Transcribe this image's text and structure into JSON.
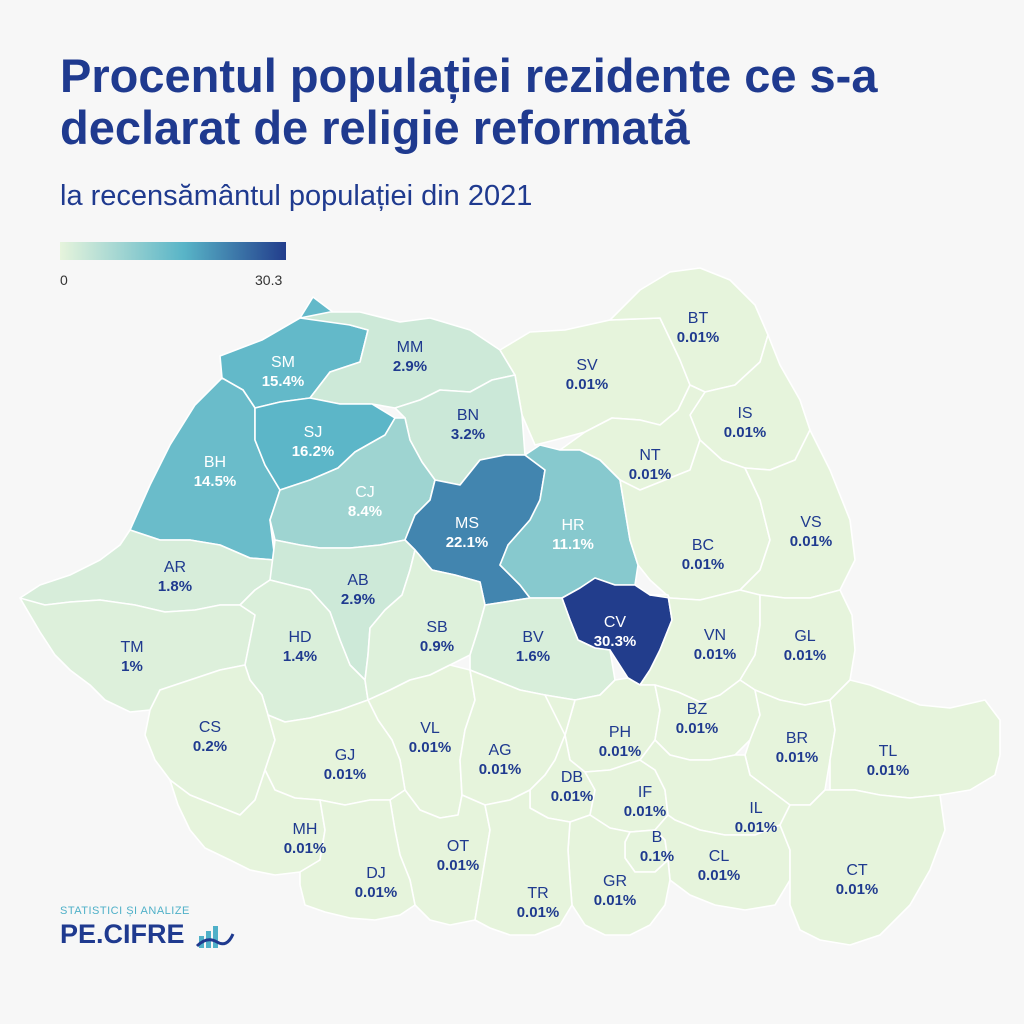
{
  "title": "Procentul populației rezidente ce s-a declarat de religie reformată",
  "subtitle": "la recensământul populației din 2021",
  "legend": {
    "min_label": "0",
    "max_label": "30.3",
    "min": 0,
    "max": 30.3,
    "color_low": "#e6f4dc",
    "color_mid": "#58b4c7",
    "color_high": "#223d8c"
  },
  "colors": {
    "title": "#1f3a8f",
    "dark_label": "#1f3a8f",
    "light_label": "#ffffff",
    "border": "#ffffff"
  },
  "map_data": {
    "type": "choropleth",
    "region": "Romania",
    "unit": "%",
    "counties": [
      {
        "code": "SM",
        "value": 15.4,
        "value_label": "15.4%"
      },
      {
        "code": "MM",
        "value": 2.9,
        "value_label": "2.9%"
      },
      {
        "code": "SV",
        "value": 0.01,
        "value_label": "0.01%"
      },
      {
        "code": "BT",
        "value": 0.01,
        "value_label": "0.01%"
      },
      {
        "code": "BH",
        "value": 14.5,
        "value_label": "14.5%"
      },
      {
        "code": "SJ",
        "value": 16.2,
        "value_label": "16.2%"
      },
      {
        "code": "BN",
        "value": 3.2,
        "value_label": "3.2%"
      },
      {
        "code": "IS",
        "value": 0.01,
        "value_label": "0.01%"
      },
      {
        "code": "NT",
        "value": 0.01,
        "value_label": "0.01%"
      },
      {
        "code": "CJ",
        "value": 8.4,
        "value_label": "8.4%"
      },
      {
        "code": "MS",
        "value": 22.1,
        "value_label": "22.1%"
      },
      {
        "code": "HR",
        "value": 11.1,
        "value_label": "11.1%"
      },
      {
        "code": "BC",
        "value": 0.01,
        "value_label": "0.01%"
      },
      {
        "code": "VS",
        "value": 0.01,
        "value_label": "0.01%"
      },
      {
        "code": "AR",
        "value": 1.8,
        "value_label": "1.8%"
      },
      {
        "code": "AB",
        "value": 2.9,
        "value_label": "2.9%"
      },
      {
        "code": "CV",
        "value": 30.3,
        "value_label": "30.3%"
      },
      {
        "code": "TM",
        "value": 1,
        "value_label": "1%"
      },
      {
        "code": "HD",
        "value": 1.4,
        "value_label": "1.4%"
      },
      {
        "code": "SB",
        "value": 0.9,
        "value_label": "0.9%"
      },
      {
        "code": "BV",
        "value": 1.6,
        "value_label": "1.6%"
      },
      {
        "code": "VN",
        "value": 0.01,
        "value_label": "0.01%"
      },
      {
        "code": "GL",
        "value": 0.01,
        "value_label": "0.01%"
      },
      {
        "code": "CS",
        "value": 0.2,
        "value_label": "0.2%"
      },
      {
        "code": "VL",
        "value": 0.01,
        "value_label": "0.01%"
      },
      {
        "code": "PH",
        "value": 0.01,
        "value_label": "0.01%"
      },
      {
        "code": "BZ",
        "value": 0.01,
        "value_label": "0.01%"
      },
      {
        "code": "BR",
        "value": 0.01,
        "value_label": "0.01%"
      },
      {
        "code": "TL",
        "value": 0.01,
        "value_label": "0.01%"
      },
      {
        "code": "GJ",
        "value": 0.01,
        "value_label": "0.01%"
      },
      {
        "code": "AG",
        "value": 0.01,
        "value_label": "0.01%"
      },
      {
        "code": "DB",
        "value": 0.01,
        "value_label": "0.01%"
      },
      {
        "code": "IF",
        "value": 0.01,
        "value_label": "0.01%"
      },
      {
        "code": "IL",
        "value": 0.01,
        "value_label": "0.01%"
      },
      {
        "code": "MH",
        "value": 0.01,
        "value_label": "0.01%"
      },
      {
        "code": "B",
        "value": 0.1,
        "value_label": "0.1%"
      },
      {
        "code": "CL",
        "value": 0.01,
        "value_label": "0.01%"
      },
      {
        "code": "OT",
        "value": 0.01,
        "value_label": "0.01%"
      },
      {
        "code": "DJ",
        "value": 0.01,
        "value_label": "0.01%"
      },
      {
        "code": "GR",
        "value": 0.01,
        "value_label": "0.01%"
      },
      {
        "code": "TR",
        "value": 0.01,
        "value_label": "0.01%"
      },
      {
        "code": "CT",
        "value": 0.01,
        "value_label": "0.01%"
      }
    ]
  },
  "brand": {
    "tagline": "STATISTICI ȘI ANALIZE",
    "name": "PE.CIFRE",
    "icon": "bar-chart-logo-icon"
  }
}
